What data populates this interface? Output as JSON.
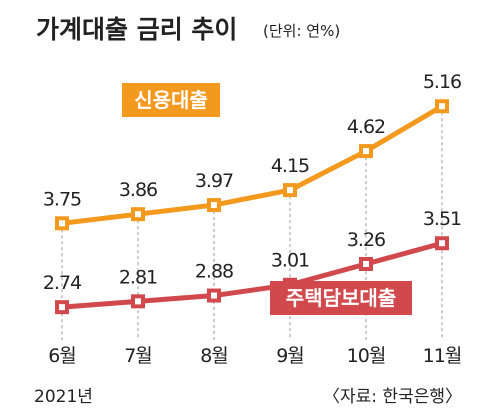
{
  "chart_data": {
    "type": "line",
    "title": "가계대출 금리 추이",
    "unit": "(단위: 연%)",
    "categories": [
      "6월",
      "7월",
      "8월",
      "9월",
      "10월",
      "11월"
    ],
    "year_label": "2021년",
    "source": "〈자료: 한국은행〉",
    "ylim": [
      2.2,
      5.5
    ],
    "grid": false,
    "series": [
      {
        "name": "신용대출",
        "color": "#F39A1E",
        "values": [
          3.75,
          3.86,
          3.97,
          4.15,
          4.62,
          5.16
        ],
        "value_labels": [
          "3.75",
          "3.86",
          "3.97",
          "4.15",
          "4.62",
          "5.16"
        ]
      },
      {
        "name": "주택담보대출",
        "color": "#D1494C",
        "values": [
          2.74,
          2.81,
          2.88,
          3.01,
          3.26,
          3.51
        ],
        "value_labels": [
          "2.74",
          "2.81",
          "2.88",
          "3.01",
          "3.26",
          "3.51"
        ]
      }
    ]
  }
}
